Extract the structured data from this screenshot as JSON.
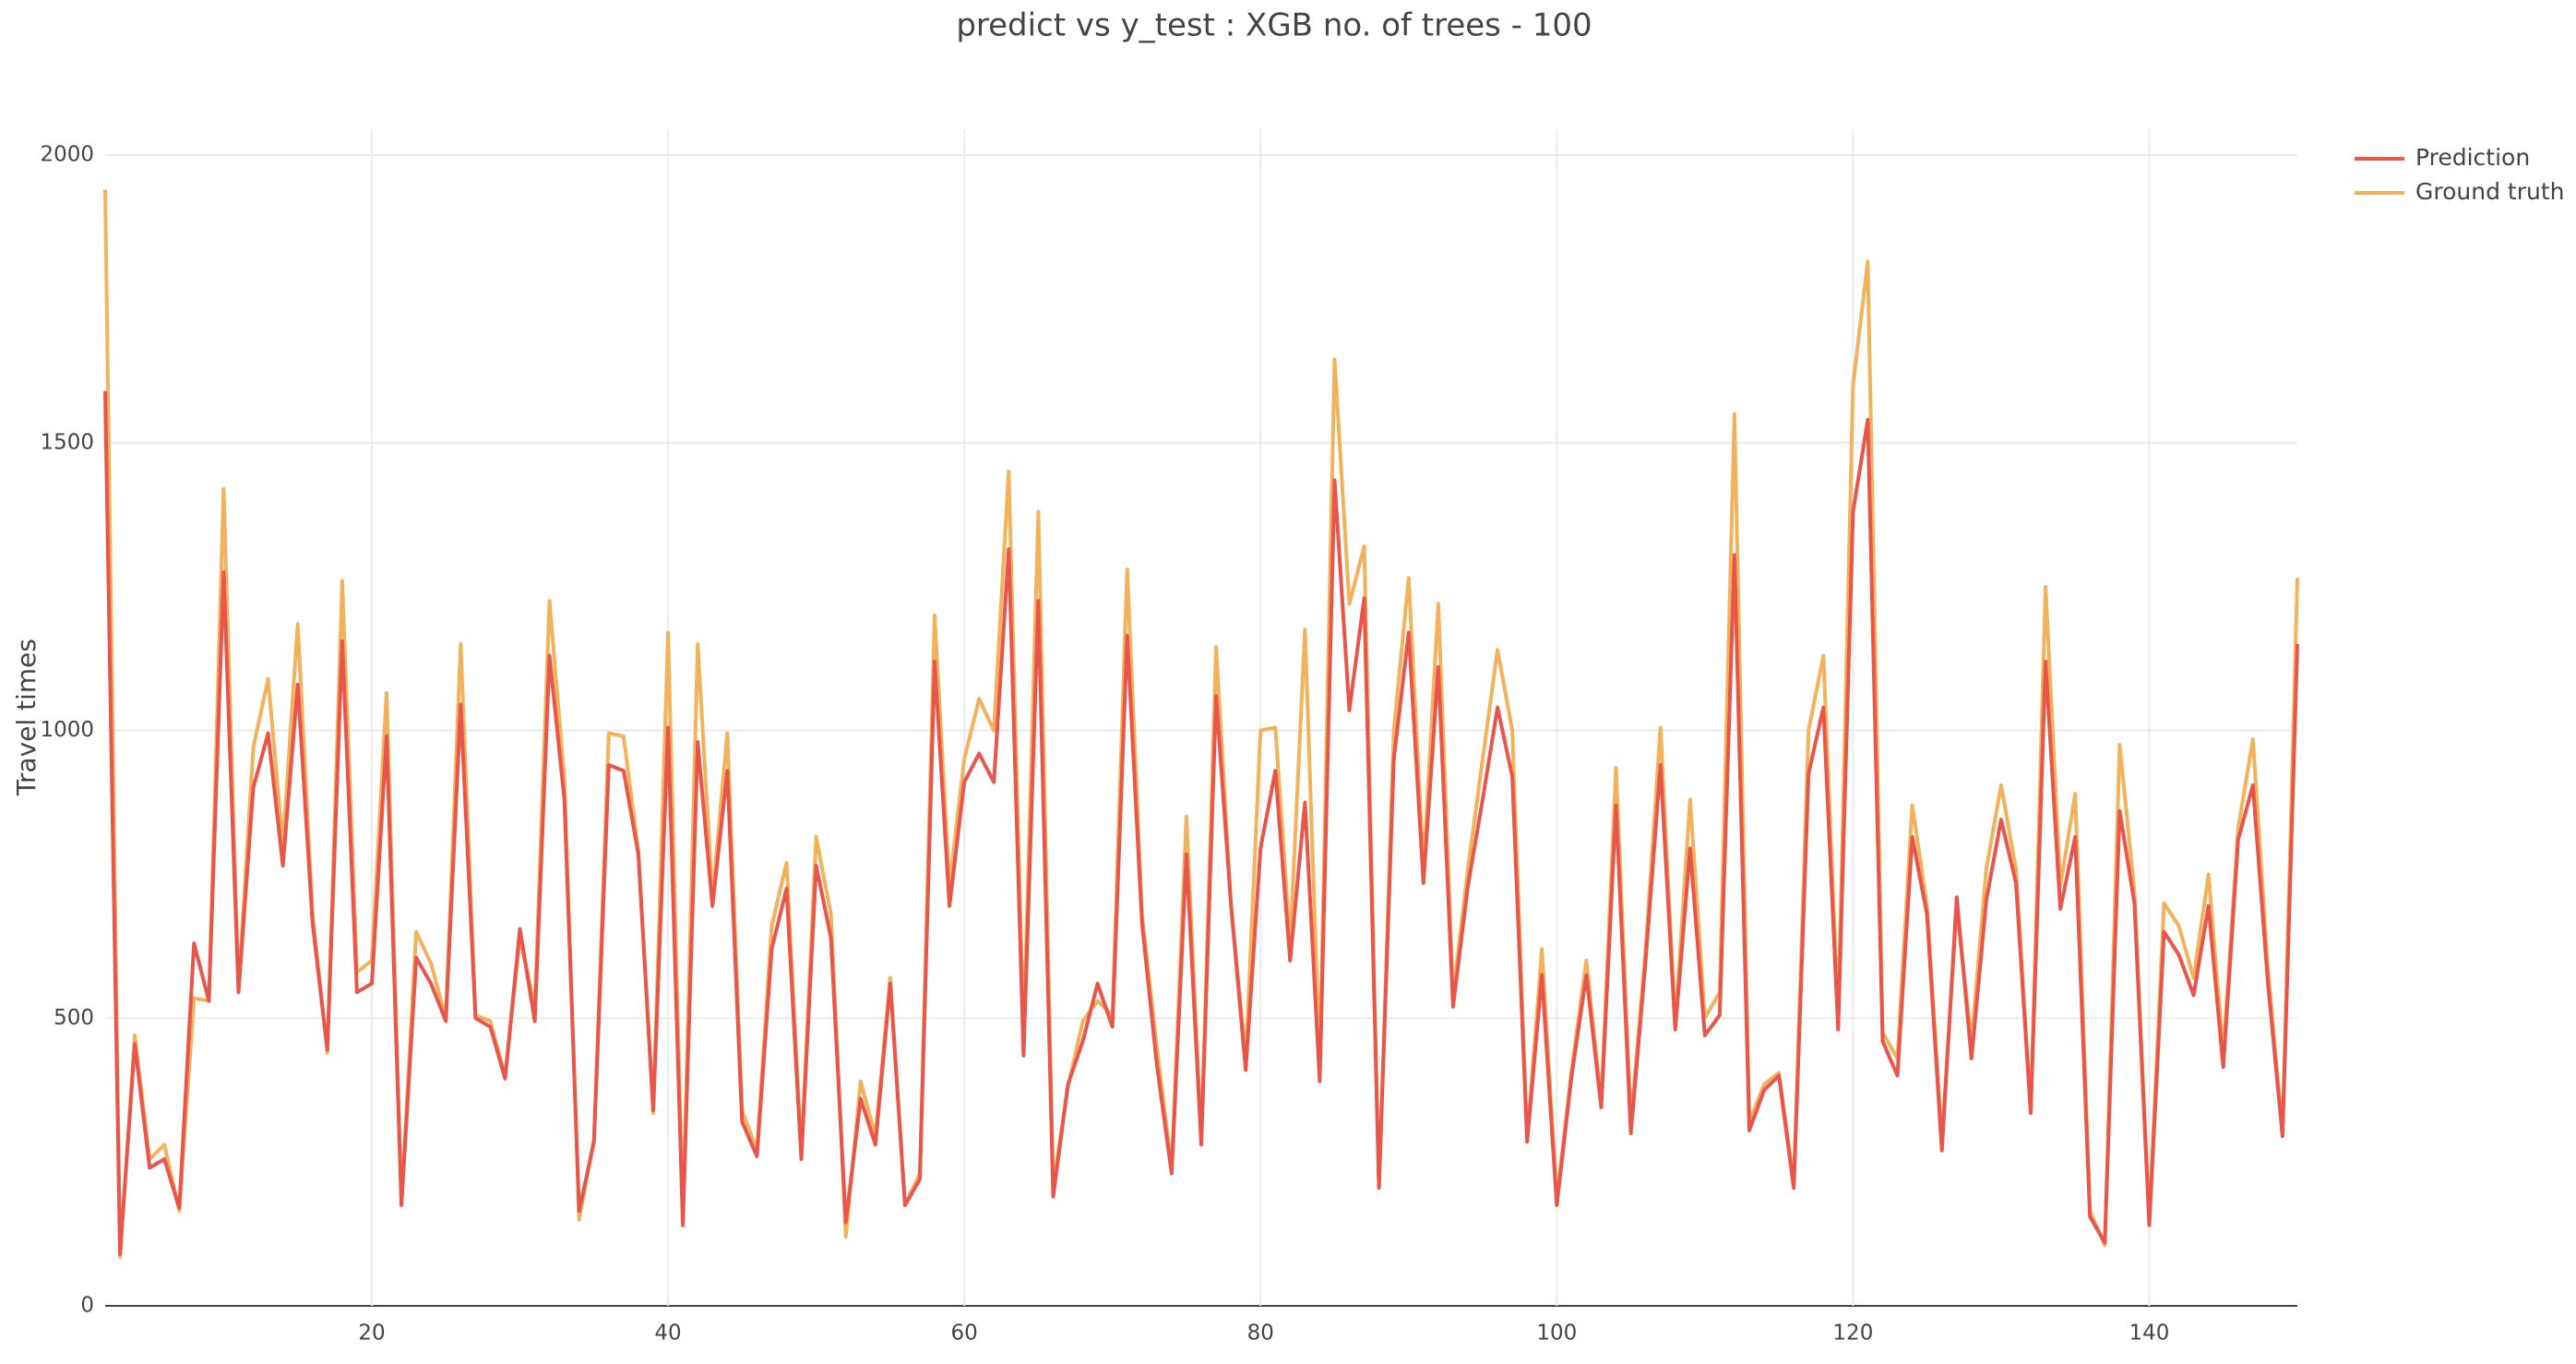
{
  "chart_data": {
    "type": "line",
    "title": "predict vs y_test : XGB no. of trees - 100",
    "y_label": "Travel times",
    "x": [
      2,
      3,
      4,
      5,
      6,
      7,
      8,
      9,
      10,
      11,
      12,
      13,
      14,
      15,
      16,
      17,
      18,
      19,
      20,
      21,
      22,
      23,
      24,
      25,
      26,
      27,
      28,
      29,
      30,
      31,
      32,
      33,
      34,
      35,
      36,
      37,
      38,
      39,
      40,
      41,
      42,
      43,
      44,
      45,
      46,
      47,
      48,
      49,
      50,
      51,
      52,
      53,
      54,
      55,
      56,
      57,
      58,
      59,
      60,
      61,
      62,
      63,
      64,
      65,
      66,
      67,
      68,
      69,
      70,
      71,
      72,
      73,
      74,
      75,
      76,
      77,
      78,
      79,
      80,
      81,
      82,
      83,
      84,
      85,
      86,
      87,
      88,
      89,
      90,
      91,
      92,
      93,
      94,
      95,
      96,
      97,
      98,
      99,
      100,
      101,
      102,
      103,
      104,
      105,
      106,
      107,
      108,
      109,
      110,
      111,
      112,
      113,
      114,
      115,
      116,
      117,
      118,
      119,
      120,
      121,
      122,
      123,
      124,
      125,
      126,
      127,
      128,
      129,
      130,
      131,
      132,
      133,
      134,
      135,
      136,
      137,
      138,
      139,
      140,
      141,
      142,
      143,
      144,
      145,
      146,
      147,
      148,
      149,
      150
    ],
    "series": [
      {
        "name": "Prediction",
        "color": "#e8554a",
        "values": [
          1590,
          90,
          455,
          240,
          255,
          170,
          630,
          530,
          1275,
          545,
          900,
          995,
          765,
          1080,
          665,
          445,
          1155,
          545,
          560,
          990,
          175,
          605,
          560,
          495,
          1045,
          500,
          485,
          395,
          655,
          495,
          1130,
          880,
          165,
          285,
          940,
          930,
          785,
          340,
          1005,
          140,
          980,
          695,
          930,
          320,
          260,
          620,
          725,
          255,
          765,
          640,
          145,
          360,
          280,
          560,
          175,
          220,
          1120,
          695,
          910,
          960,
          910,
          1315,
          435,
          1225,
          190,
          385,
          460,
          560,
          485,
          1165,
          665,
          420,
          230,
          785,
          280,
          1060,
          700,
          410,
          795,
          930,
          600,
          875,
          390,
          1435,
          1035,
          1230,
          205,
          950,
          1170,
          735,
          1110,
          520,
          730,
          880,
          1040,
          920,
          285,
          575,
          175,
          400,
          575,
          345,
          870,
          300,
          600,
          940,
          480,
          795,
          470,
          505,
          1305,
          305,
          375,
          400,
          205,
          925,
          1040,
          480,
          1380,
          1540,
          460,
          400,
          815,
          680,
          270,
          710,
          430,
          705,
          845,
          735,
          335,
          1120,
          690,
          815,
          155,
          110,
          860,
          700,
          140,
          650,
          610,
          540,
          695,
          415,
          810,
          905,
          565,
          295,
          1150
        ]
      },
      {
        "name": "Ground truth",
        "color": "#f2b25c",
        "values": [
          1940,
          85,
          470,
          255,
          280,
          165,
          535,
          530,
          1420,
          550,
          970,
          1090,
          800,
          1185,
          680,
          440,
          1260,
          580,
          600,
          1065,
          180,
          650,
          595,
          500,
          1150,
          505,
          495,
          400,
          640,
          520,
          1225,
          915,
          150,
          290,
          995,
          990,
          790,
          335,
          1170,
          150,
          1150,
          710,
          995,
          340,
          270,
          660,
          770,
          265,
          815,
          680,
          120,
          390,
          295,
          570,
          175,
          230,
          1200,
          730,
          950,
          1055,
          1000,
          1450,
          470,
          1380,
          210,
          380,
          495,
          530,
          505,
          1280,
          680,
          450,
          240,
          850,
          290,
          1145,
          700,
          430,
          1000,
          1005,
          630,
          1175,
          420,
          1645,
          1220,
          1320,
          205,
          1000,
          1265,
          760,
          1220,
          540,
          760,
          950,
          1140,
          1000,
          290,
          620,
          185,
          410,
          600,
          355,
          935,
          320,
          620,
          1005,
          490,
          880,
          500,
          545,
          1550,
          320,
          385,
          405,
          215,
          1000,
          1130,
          500,
          1600,
          1815,
          475,
          430,
          870,
          695,
          290,
          690,
          460,
          760,
          905,
          760,
          340,
          1250,
          730,
          890,
          165,
          105,
          975,
          720,
          150,
          700,
          660,
          570,
          750,
          440,
          830,
          985,
          590,
          300,
          1265
        ]
      }
    ],
    "xlim": [
      2,
      150
    ],
    "xticks": [
      20,
      40,
      60,
      80,
      100,
      120,
      140
    ],
    "ylim": [
      0,
      2045
    ],
    "yticks": [
      0,
      500,
      1000,
      1500,
      2000
    ],
    "grid": true,
    "legend": "top-right"
  }
}
